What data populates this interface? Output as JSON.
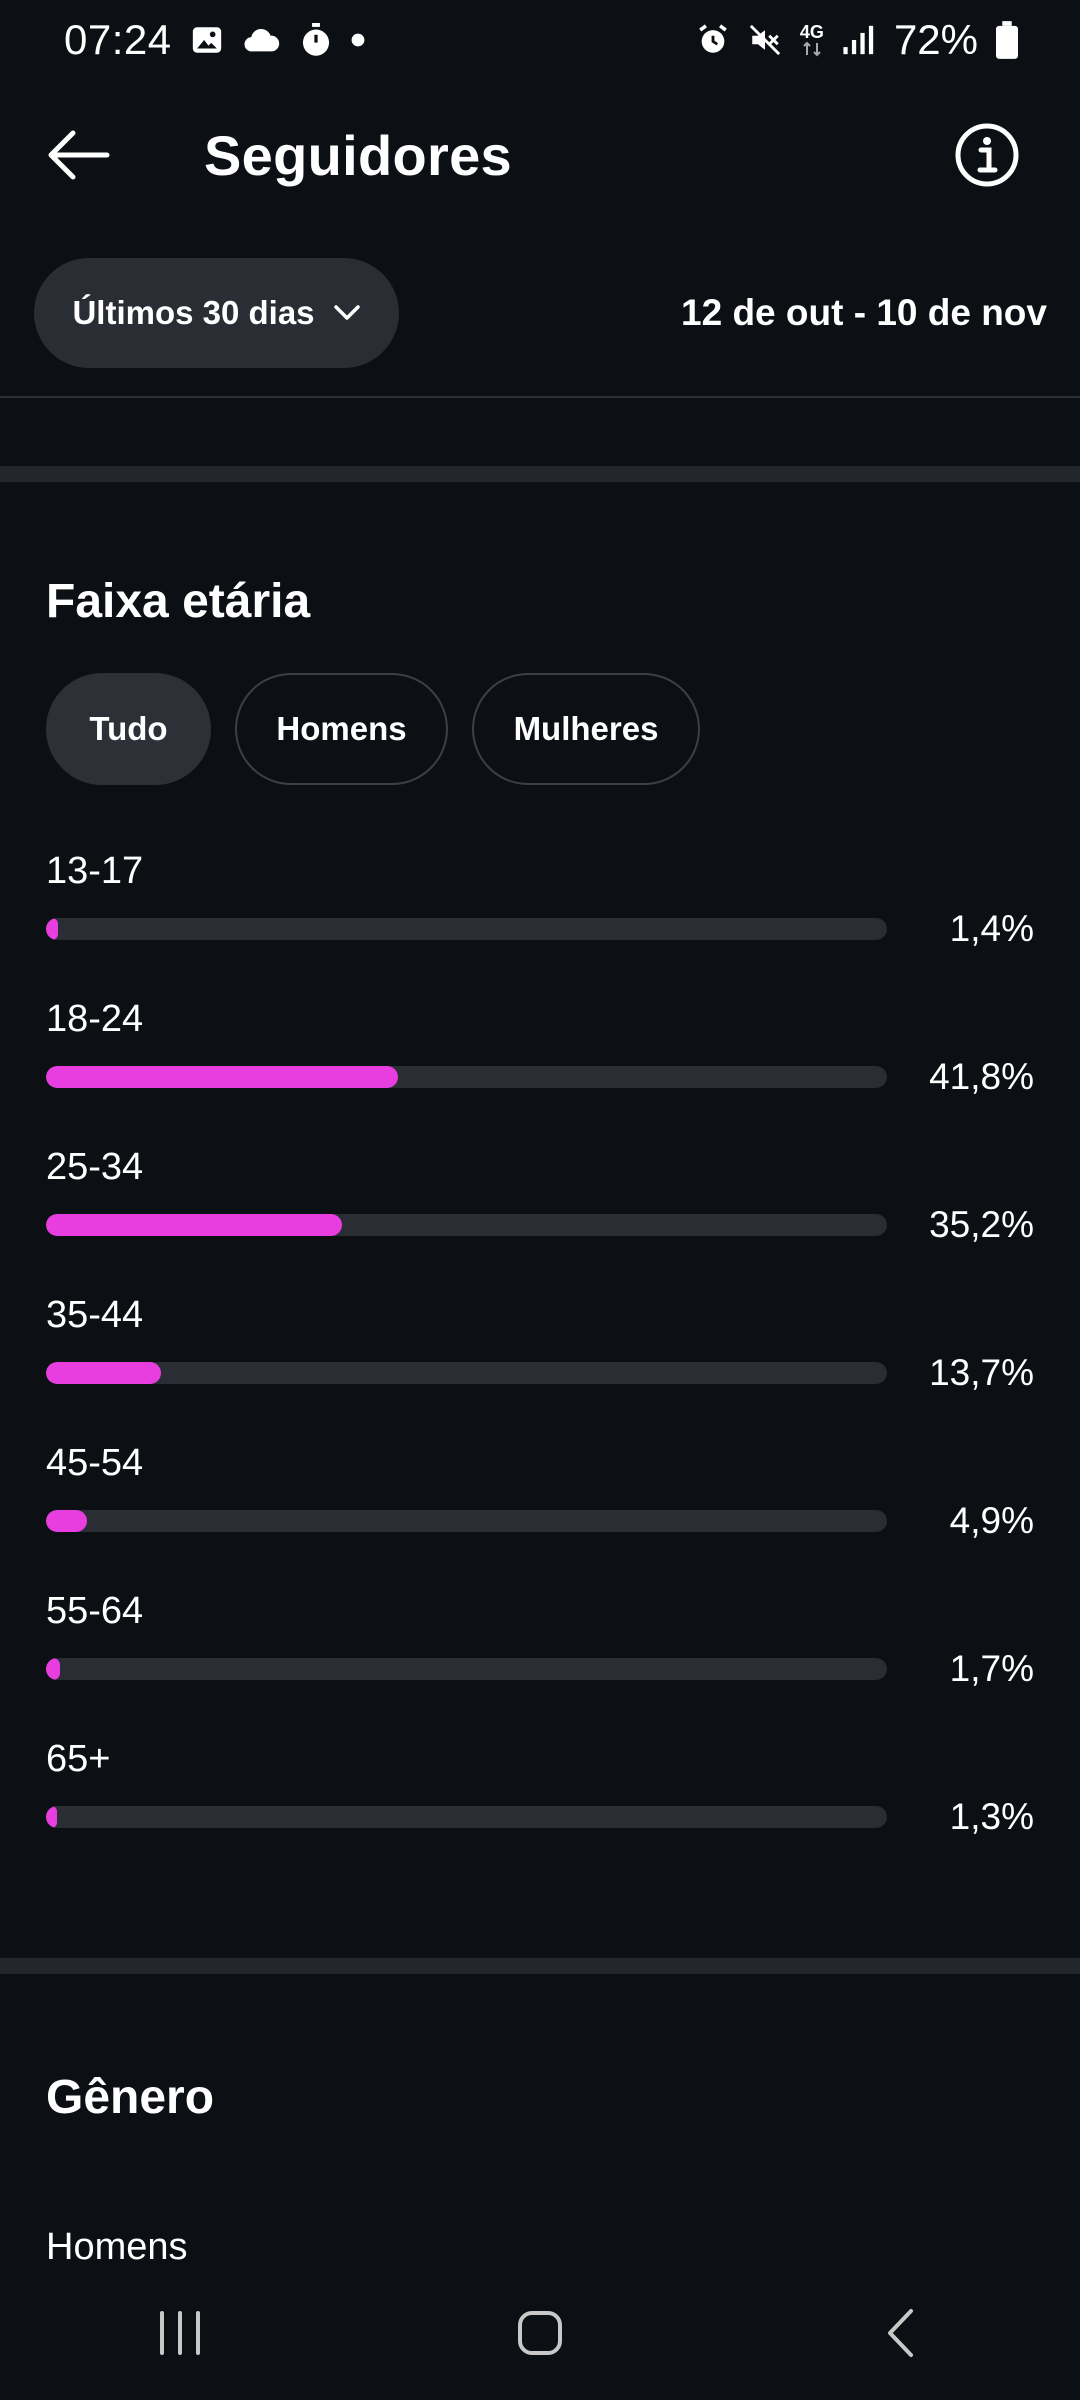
{
  "status_bar": {
    "time": "07:24",
    "battery": "72%",
    "network": "4G",
    "left_icons": [
      "image-icon",
      "cloud-icon",
      "stopwatch-icon",
      "dot-icon"
    ],
    "right_icons": [
      "alarm-icon",
      "mute-icon",
      "network-4g-icon",
      "signal-icon",
      "battery-icon"
    ]
  },
  "header": {
    "title": "Seguidores"
  },
  "filter": {
    "period_label": "Últimos 30 dias",
    "date_range": "12 de out - 10 de nov"
  },
  "age_section": {
    "title": "Faixa etária",
    "chips": [
      {
        "label": "Tudo",
        "selected": true
      },
      {
        "label": "Homens",
        "selected": false
      },
      {
        "label": "Mulheres",
        "selected": false
      }
    ],
    "rows": [
      {
        "label": "13-17",
        "value_text": "1,4%",
        "value": 1.4
      },
      {
        "label": "18-24",
        "value_text": "41,8%",
        "value": 41.8
      },
      {
        "label": "25-34",
        "value_text": "35,2%",
        "value": 35.2
      },
      {
        "label": "35-44",
        "value_text": "13,7%",
        "value": 13.7
      },
      {
        "label": "45-54",
        "value_text": "4,9%",
        "value": 4.9
      },
      {
        "label": "55-64",
        "value_text": "1,7%",
        "value": 1.7
      },
      {
        "label": "65+",
        "value_text": "1,3%",
        "value": 1.3
      }
    ],
    "bar_color": "#e83ee0"
  },
  "gender_section": {
    "title": "Gênero",
    "first_row_label": "Homens"
  },
  "colors": {
    "background": "#0c0f14",
    "accent": "#e83ee0",
    "surface": "#2a2d33"
  }
}
